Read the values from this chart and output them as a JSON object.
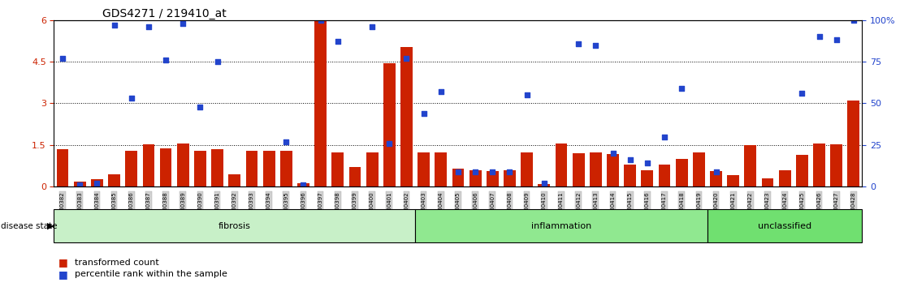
{
  "title": "GDS4271 / 219410_at",
  "samples": [
    "GSM380382",
    "GSM380383",
    "GSM380384",
    "GSM380385",
    "GSM380386",
    "GSM380387",
    "GSM380388",
    "GSM380389",
    "GSM380390",
    "GSM380391",
    "GSM380392",
    "GSM380393",
    "GSM380394",
    "GSM380395",
    "GSM380396",
    "GSM380397",
    "GSM380398",
    "GSM380399",
    "GSM380400",
    "GSM380401",
    "GSM380402",
    "GSM380403",
    "GSM380404",
    "GSM380405",
    "GSM380406",
    "GSM380407",
    "GSM380408",
    "GSM380409",
    "GSM380410",
    "GSM380411",
    "GSM380412",
    "GSM380413",
    "GSM380414",
    "GSM380415",
    "GSM380416",
    "GSM380417",
    "GSM380418",
    "GSM380419",
    "GSM380420",
    "GSM380421",
    "GSM380422",
    "GSM380423",
    "GSM380424",
    "GSM380425",
    "GSM380426",
    "GSM380427",
    "GSM380428"
  ],
  "bar_values": [
    1.35,
    0.18,
    0.28,
    0.45,
    1.3,
    1.52,
    1.38,
    1.55,
    1.3,
    1.35,
    0.44,
    1.28,
    1.3,
    1.28,
    0.12,
    5.95,
    1.22,
    0.7,
    1.22,
    4.45,
    5.02,
    1.22,
    1.22,
    0.65,
    0.6,
    0.55,
    0.6,
    1.22,
    0.1,
    1.55,
    1.2,
    1.22,
    1.18,
    0.8,
    0.6,
    0.8,
    1.0,
    1.22,
    0.55,
    0.4,
    1.5,
    0.3,
    0.6,
    1.15,
    1.55,
    1.52,
    3.1
  ],
  "scatter_values_pct": [
    77,
    1,
    2,
    97,
    53,
    96,
    76,
    98,
    48,
    75,
    null,
    null,
    null,
    27,
    1,
    100,
    87,
    null,
    96,
    26,
    77,
    44,
    57,
    9,
    9,
    9,
    9,
    55,
    2,
    null,
    86,
    85,
    20,
    16,
    14,
    30,
    59,
    null,
    9,
    null,
    null,
    null,
    null,
    56,
    90,
    88,
    100
  ],
  "groups": [
    {
      "label": "fibrosis",
      "start": 0,
      "end": 21,
      "color": "#c8f0c8"
    },
    {
      "label": "inflammation",
      "start": 21,
      "end": 38,
      "color": "#90e890"
    },
    {
      "label": "unclassified",
      "start": 38,
      "end": 47,
      "color": "#70e070"
    }
  ],
  "ylim_left": [
    0,
    6
  ],
  "yticks_left": [
    0,
    1.5,
    3.0,
    4.5,
    6.0
  ],
  "ytick_labels_left": [
    "0",
    "1.5",
    "3",
    "4.5",
    "6"
  ],
  "ylim_right": [
    0,
    100
  ],
  "yticks_right": [
    0,
    25,
    50,
    75,
    100
  ],
  "ytick_labels_right": [
    "0",
    "25",
    "50",
    "75",
    "100%"
  ],
  "hlines": [
    1.5,
    3.0,
    4.5
  ],
  "bar_color": "#cc2200",
  "scatter_color": "#2244cc",
  "bg_label": "#d0d0d0"
}
